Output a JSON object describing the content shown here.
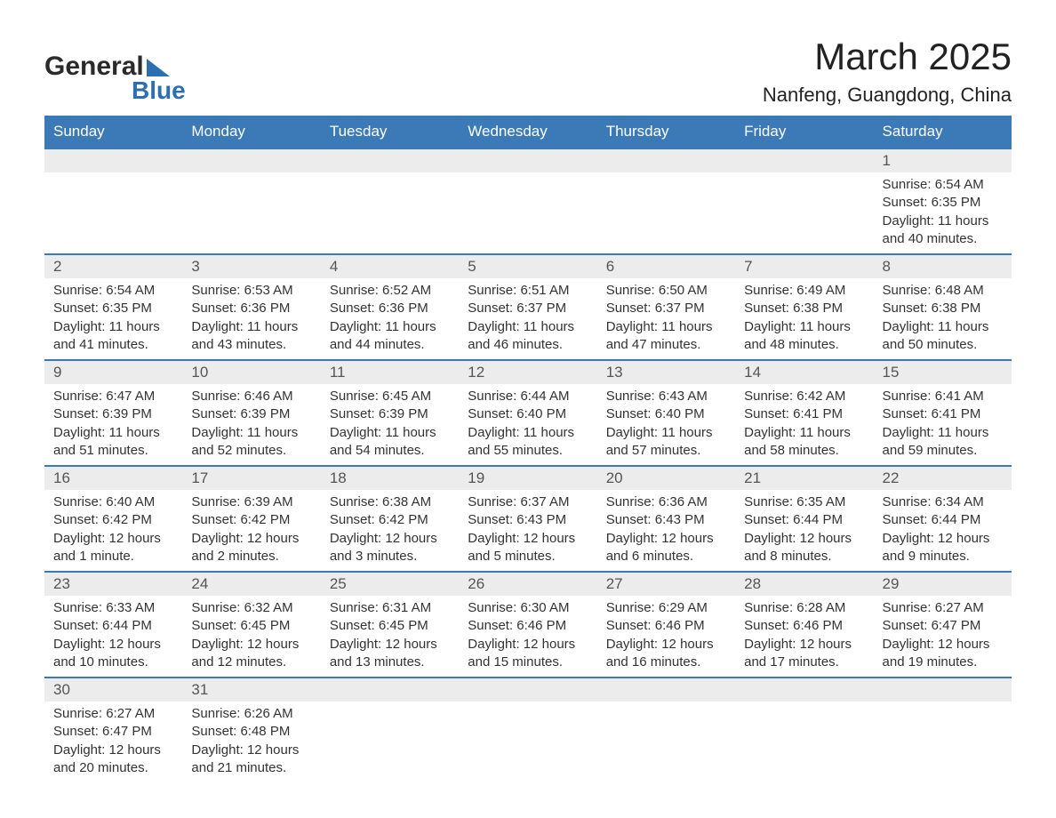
{
  "logo": {
    "word1": "General",
    "word2": "Blue"
  },
  "title": "March 2025",
  "location": "Nanfeng, Guangdong, China",
  "day_headers": [
    "Sunday",
    "Monday",
    "Tuesday",
    "Wednesday",
    "Thursday",
    "Friday",
    "Saturday"
  ],
  "colors": {
    "header_bg": "#3b79b7",
    "header_text": "#ffffff",
    "daynum_bg": "#ececec",
    "row_border": "#3b79b7",
    "logo_accent": "#2b6fb0"
  },
  "weeks": [
    [
      null,
      null,
      null,
      null,
      null,
      null,
      {
        "n": "1",
        "sunrise": "Sunrise: 6:54 AM",
        "sunset": "Sunset: 6:35 PM",
        "daylight": "Daylight: 11 hours and 40 minutes."
      }
    ],
    [
      {
        "n": "2",
        "sunrise": "Sunrise: 6:54 AM",
        "sunset": "Sunset: 6:35 PM",
        "daylight": "Daylight: 11 hours and 41 minutes."
      },
      {
        "n": "3",
        "sunrise": "Sunrise: 6:53 AM",
        "sunset": "Sunset: 6:36 PM",
        "daylight": "Daylight: 11 hours and 43 minutes."
      },
      {
        "n": "4",
        "sunrise": "Sunrise: 6:52 AM",
        "sunset": "Sunset: 6:36 PM",
        "daylight": "Daylight: 11 hours and 44 minutes."
      },
      {
        "n": "5",
        "sunrise": "Sunrise: 6:51 AM",
        "sunset": "Sunset: 6:37 PM",
        "daylight": "Daylight: 11 hours and 46 minutes."
      },
      {
        "n": "6",
        "sunrise": "Sunrise: 6:50 AM",
        "sunset": "Sunset: 6:37 PM",
        "daylight": "Daylight: 11 hours and 47 minutes."
      },
      {
        "n": "7",
        "sunrise": "Sunrise: 6:49 AM",
        "sunset": "Sunset: 6:38 PM",
        "daylight": "Daylight: 11 hours and 48 minutes."
      },
      {
        "n": "8",
        "sunrise": "Sunrise: 6:48 AM",
        "sunset": "Sunset: 6:38 PM",
        "daylight": "Daylight: 11 hours and 50 minutes."
      }
    ],
    [
      {
        "n": "9",
        "sunrise": "Sunrise: 6:47 AM",
        "sunset": "Sunset: 6:39 PM",
        "daylight": "Daylight: 11 hours and 51 minutes."
      },
      {
        "n": "10",
        "sunrise": "Sunrise: 6:46 AM",
        "sunset": "Sunset: 6:39 PM",
        "daylight": "Daylight: 11 hours and 52 minutes."
      },
      {
        "n": "11",
        "sunrise": "Sunrise: 6:45 AM",
        "sunset": "Sunset: 6:39 PM",
        "daylight": "Daylight: 11 hours and 54 minutes."
      },
      {
        "n": "12",
        "sunrise": "Sunrise: 6:44 AM",
        "sunset": "Sunset: 6:40 PM",
        "daylight": "Daylight: 11 hours and 55 minutes."
      },
      {
        "n": "13",
        "sunrise": "Sunrise: 6:43 AM",
        "sunset": "Sunset: 6:40 PM",
        "daylight": "Daylight: 11 hours and 57 minutes."
      },
      {
        "n": "14",
        "sunrise": "Sunrise: 6:42 AM",
        "sunset": "Sunset: 6:41 PM",
        "daylight": "Daylight: 11 hours and 58 minutes."
      },
      {
        "n": "15",
        "sunrise": "Sunrise: 6:41 AM",
        "sunset": "Sunset: 6:41 PM",
        "daylight": "Daylight: 11 hours and 59 minutes."
      }
    ],
    [
      {
        "n": "16",
        "sunrise": "Sunrise: 6:40 AM",
        "sunset": "Sunset: 6:42 PM",
        "daylight": "Daylight: 12 hours and 1 minute."
      },
      {
        "n": "17",
        "sunrise": "Sunrise: 6:39 AM",
        "sunset": "Sunset: 6:42 PM",
        "daylight": "Daylight: 12 hours and 2 minutes."
      },
      {
        "n": "18",
        "sunrise": "Sunrise: 6:38 AM",
        "sunset": "Sunset: 6:42 PM",
        "daylight": "Daylight: 12 hours and 3 minutes."
      },
      {
        "n": "19",
        "sunrise": "Sunrise: 6:37 AM",
        "sunset": "Sunset: 6:43 PM",
        "daylight": "Daylight: 12 hours and 5 minutes."
      },
      {
        "n": "20",
        "sunrise": "Sunrise: 6:36 AM",
        "sunset": "Sunset: 6:43 PM",
        "daylight": "Daylight: 12 hours and 6 minutes."
      },
      {
        "n": "21",
        "sunrise": "Sunrise: 6:35 AM",
        "sunset": "Sunset: 6:44 PM",
        "daylight": "Daylight: 12 hours and 8 minutes."
      },
      {
        "n": "22",
        "sunrise": "Sunrise: 6:34 AM",
        "sunset": "Sunset: 6:44 PM",
        "daylight": "Daylight: 12 hours and 9 minutes."
      }
    ],
    [
      {
        "n": "23",
        "sunrise": "Sunrise: 6:33 AM",
        "sunset": "Sunset: 6:44 PM",
        "daylight": "Daylight: 12 hours and 10 minutes."
      },
      {
        "n": "24",
        "sunrise": "Sunrise: 6:32 AM",
        "sunset": "Sunset: 6:45 PM",
        "daylight": "Daylight: 12 hours and 12 minutes."
      },
      {
        "n": "25",
        "sunrise": "Sunrise: 6:31 AM",
        "sunset": "Sunset: 6:45 PM",
        "daylight": "Daylight: 12 hours and 13 minutes."
      },
      {
        "n": "26",
        "sunrise": "Sunrise: 6:30 AM",
        "sunset": "Sunset: 6:46 PM",
        "daylight": "Daylight: 12 hours and 15 minutes."
      },
      {
        "n": "27",
        "sunrise": "Sunrise: 6:29 AM",
        "sunset": "Sunset: 6:46 PM",
        "daylight": "Daylight: 12 hours and 16 minutes."
      },
      {
        "n": "28",
        "sunrise": "Sunrise: 6:28 AM",
        "sunset": "Sunset: 6:46 PM",
        "daylight": "Daylight: 12 hours and 17 minutes."
      },
      {
        "n": "29",
        "sunrise": "Sunrise: 6:27 AM",
        "sunset": "Sunset: 6:47 PM",
        "daylight": "Daylight: 12 hours and 19 minutes."
      }
    ],
    [
      {
        "n": "30",
        "sunrise": "Sunrise: 6:27 AM",
        "sunset": "Sunset: 6:47 PM",
        "daylight": "Daylight: 12 hours and 20 minutes."
      },
      {
        "n": "31",
        "sunrise": "Sunrise: 6:26 AM",
        "sunset": "Sunset: 6:48 PM",
        "daylight": "Daylight: 12 hours and 21 minutes."
      },
      null,
      null,
      null,
      null,
      null
    ]
  ]
}
